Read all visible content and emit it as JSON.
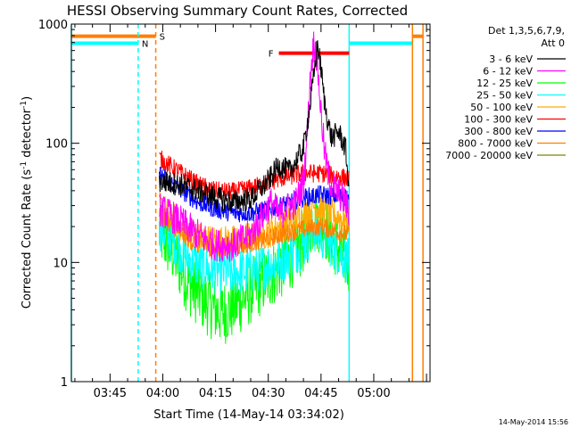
{
  "chart_data": {
    "type": "line",
    "title": "HESSI Observing Summary Count Rates, Corrected",
    "xlabel": "Start Time (14-May-14 03:34:02)",
    "ylabel_main": "Corrected Count Rate (s",
    "ylabel_sup1": "-1",
    "ylabel_mid": " detector",
    "ylabel_sup2": "-1",
    "ylabel_end": ")",
    "y_scale": "log",
    "ylim": [
      1,
      1000
    ],
    "xlim": [
      "03:34",
      "05:16"
    ],
    "x_ticks": [
      "03:45",
      "04:00",
      "04:15",
      "04:30",
      "04:45",
      "05:00"
    ],
    "y_ticks": [
      "1",
      "10",
      "100",
      "1000"
    ],
    "legend": {
      "position": "right",
      "header_line1": "Det 1,3,5,6,7,9,",
      "header_line2": "Att 0"
    },
    "timestamp": "14-May-2014 15:56",
    "series": [
      {
        "name": "3 - 6 keV",
        "color": "#000000",
        "x": [
          "03:59",
          "04:05",
          "04:10",
          "04:15",
          "04:20",
          "04:25",
          "04:30",
          "04:33",
          "04:36",
          "04:40",
          "04:42",
          "04:43",
          "04:44",
          "04:45",
          "04:46",
          "04:47",
          "04:48",
          "04:50",
          "04:52",
          "04:53"
        ],
        "y": [
          48,
          45,
          40,
          35,
          32,
          34,
          48,
          65,
          58,
          90,
          220,
          380,
          680,
          420,
          220,
          150,
          110,
          125,
          90,
          40
        ]
      },
      {
        "name": "6 - 12 keV",
        "color": "#ff00ff",
        "x": [
          "03:59",
          "04:05",
          "04:10",
          "04:15",
          "04:20",
          "04:25",
          "04:28",
          "04:31",
          "04:33",
          "04:35",
          "04:38",
          "04:40",
          "04:41",
          "04:42",
          "04:43",
          "04:44",
          "04:45",
          "04:46",
          "04:47",
          "04:48",
          "04:50",
          "04:52",
          "04:53"
        ],
        "y": [
          28,
          22,
          17,
          14,
          14,
          17,
          24,
          32,
          25,
          28,
          32,
          48,
          110,
          380,
          720,
          450,
          180,
          85,
          55,
          45,
          38,
          32,
          25
        ]
      },
      {
        "name": "12 - 25 keV",
        "color": "#00ff00",
        "x": [
          "03:59",
          "04:03",
          "04:07",
          "04:10",
          "04:13",
          "04:15",
          "04:17",
          "04:20",
          "04:23",
          "04:26",
          "04:30",
          "04:35",
          "04:40",
          "04:43",
          "04:45",
          "04:47",
          "04:50",
          "04:53"
        ],
        "y": [
          18,
          12,
          7,
          5.5,
          4.5,
          4,
          3.8,
          4.2,
          5,
          6,
          7.5,
          10,
          15,
          24,
          22,
          18,
          13,
          10
        ]
      },
      {
        "name": "25 - 50 keV",
        "color": "#00ffff",
        "x": [
          "03:59",
          "04:03",
          "04:07",
          "04:10",
          "04:15",
          "04:20",
          "04:25",
          "04:30",
          "04:35",
          "04:40",
          "04:43",
          "04:45",
          "04:48",
          "04:50",
          "04:53"
        ],
        "y": [
          20,
          15,
          11,
          9.5,
          8.5,
          8.2,
          8.6,
          9.5,
          11,
          14,
          19,
          17,
          14,
          12,
          10
        ]
      },
      {
        "name": "50 - 100 keV",
        "color": "#ffaa00",
        "x": [
          "03:59",
          "04:03",
          "04:07",
          "04:10",
          "04:15",
          "04:20",
          "04:25",
          "04:30",
          "04:35",
          "04:40",
          "04:43",
          "04:45",
          "04:48",
          "04:50",
          "04:53"
        ],
        "y": [
          30,
          23,
          18,
          16,
          15,
          15,
          16,
          18,
          21,
          25,
          30,
          28,
          25,
          24,
          22
        ]
      },
      {
        "name": "100 - 300 keV",
        "color": "#ff0000",
        "x": [
          "03:59",
          "04:03",
          "04:07",
          "04:10",
          "04:15",
          "04:20",
          "04:25",
          "04:30",
          "04:35",
          "04:40",
          "04:45",
          "04:50",
          "04:53"
        ],
        "y": [
          75,
          62,
          52,
          45,
          40,
          39,
          42,
          47,
          52,
          56,
          56,
          53,
          50
        ]
      },
      {
        "name": "300 - 800 keV",
        "color": "#0000ff",
        "x": [
          "03:59",
          "04:03",
          "04:07",
          "04:10",
          "04:15",
          "04:20",
          "04:25",
          "04:30",
          "04:35",
          "04:40",
          "04:45",
          "04:50",
          "04:53"
        ],
        "y": [
          55,
          45,
          37,
          32,
          28,
          26,
          26,
          28,
          31,
          35,
          37,
          36,
          35
        ]
      },
      {
        "name": "800 - 7000 keV",
        "color": "#ff7f00",
        "x": [
          "03:59",
          "04:03",
          "04:07",
          "04:10",
          "04:15",
          "04:20",
          "04:25",
          "04:30",
          "04:35",
          "04:40",
          "04:45",
          "04:50",
          "04:53"
        ],
        "y": [
          25,
          20,
          16,
          14,
          13.5,
          13.5,
          14.5,
          16,
          17.5,
          19,
          20,
          18,
          17
        ]
      },
      {
        "name": "7000 - 20000 keV",
        "color": "#808000",
        "x": [],
        "y": []
      }
    ],
    "annotations": [
      {
        "label": "S",
        "color": "#ff7f00",
        "bar_start": "03:34",
        "bar_end": "03:58",
        "bar_level": 790,
        "marker_line": "03:58",
        "style": "dashed"
      },
      {
        "label": "N",
        "color": "#00ffff",
        "bar_start": "03:34",
        "bar_end": "03:53",
        "bar_level": 690,
        "marker_line": "03:53",
        "style": "dashed"
      },
      {
        "label": "",
        "color": "#00ffff",
        "bar_start": "04:53",
        "bar_end": "05:11",
        "bar_level": 690,
        "marker_line": "04:53",
        "style": "solid"
      },
      {
        "label": "",
        "color": "#ff7f00",
        "bar_start": "05:11",
        "bar_end": "05:14",
        "bar_level": 790,
        "marker_line": "05:11",
        "style": "solid"
      },
      {
        "label": "",
        "color": "#ff7f00",
        "marker_line": "05:14",
        "style": "solid"
      },
      {
        "label": "",
        "color": "#00ffff",
        "marker_line": "03:34",
        "style": "solid"
      },
      {
        "label": "F",
        "color": "#ff0000",
        "bar_start": "04:33",
        "bar_end": "04:53",
        "bar_level": 570
      }
    ]
  }
}
